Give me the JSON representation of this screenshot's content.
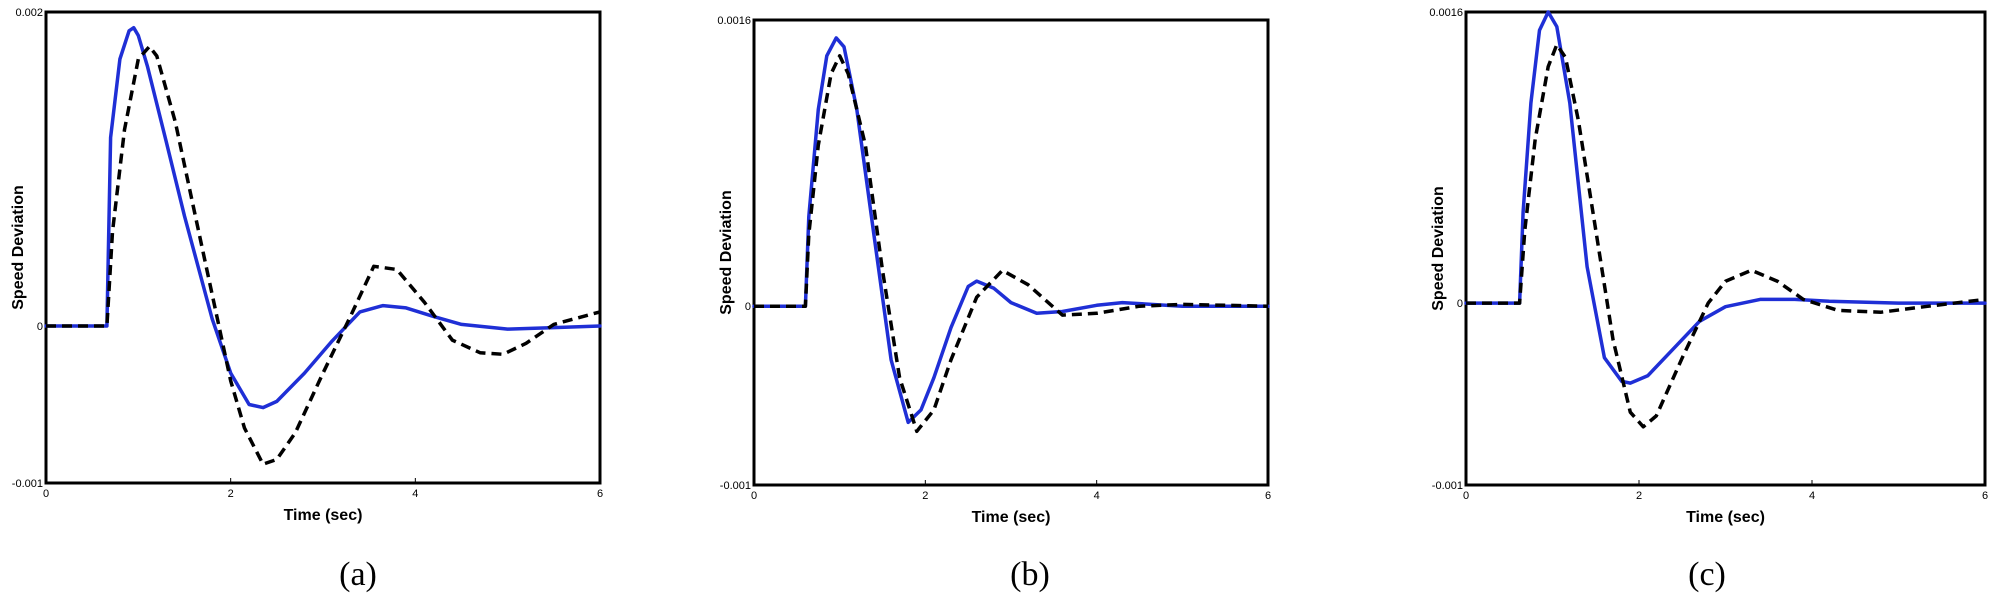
{
  "colors": {
    "series_blue": "#1f2fd6",
    "series_black": "#000000",
    "axes": "#000000"
  },
  "chart_data": [
    {
      "type": "line",
      "caption": "(a)",
      "xlabel": "Time (sec)",
      "ylabel": "Speed Deviation",
      "xlim": [
        0,
        6
      ],
      "ylim": [
        -0.001,
        0.002
      ],
      "xticks": [
        0,
        2,
        4,
        6
      ],
      "xtick_labels": [
        "0",
        "2",
        "4",
        "6"
      ],
      "yticks": [
        -0.001,
        0,
        0.002
      ],
      "ytick_labels": [
        "-0.001",
        "0",
        "0.002"
      ],
      "grid": false,
      "series": [
        {
          "style": "solid",
          "color": "#1f2fd6",
          "x": [
            0,
            0.66,
            0.7,
            0.8,
            0.9,
            0.95,
            1.0,
            1.1,
            1.3,
            1.5,
            1.8,
            2.0,
            2.2,
            2.35,
            2.5,
            2.8,
            3.1,
            3.4,
            3.65,
            3.9,
            4.2,
            4.5,
            5.0,
            5.5,
            6.0
          ],
          "y": [
            0,
            0,
            0.0012,
            0.0017,
            0.00188,
            0.0019,
            0.00185,
            0.00165,
            0.00118,
            0.0007,
            4.5e-05,
            -0.0003,
            -0.0005,
            -0.00052,
            -0.00048,
            -0.0003,
            -9.5e-05,
            9e-05,
            0.00013,
            0.000115,
            6e-05,
            1e-05,
            -2e-05,
            -1e-05,
            0.0
          ]
        },
        {
          "style": "dashed",
          "color": "#000000",
          "x": [
            0,
            0.66,
            0.72,
            0.85,
            1.0,
            1.12,
            1.2,
            1.4,
            1.6,
            1.8,
            2.0,
            2.15,
            2.35,
            2.5,
            2.7,
            3.0,
            3.3,
            3.55,
            3.8,
            4.1,
            4.4,
            4.7,
            4.95,
            5.2,
            5.5,
            6.0
          ],
          "y": [
            0,
            0,
            0.0006,
            0.00125,
            0.0017,
            0.00178,
            0.00172,
            0.0013,
            0.00075,
            0.0002,
            -0.00035,
            -0.00065,
            -0.00088,
            -0.00085,
            -0.00068,
            -0.0003,
            6.5e-05,
            0.00038,
            0.00036,
            0.00015,
            -9e-05,
            -0.00017,
            -0.00018,
            -0.00011,
            1e-05,
            9e-05
          ]
        }
      ]
    },
    {
      "type": "line",
      "caption": "(b)",
      "xlabel": "Time (sec)",
      "ylabel": "Speed Deviation",
      "xlim": [
        0,
        6
      ],
      "ylim": [
        -0.001,
        0.0016
      ],
      "xticks": [
        0,
        2,
        4,
        6
      ],
      "xtick_labels": [
        "0",
        "2",
        "4",
        "6"
      ],
      "yticks": [
        -0.001,
        0,
        0.0016
      ],
      "ytick_labels": [
        "-0.001",
        "0",
        "0.0016"
      ],
      "grid": false,
      "series": [
        {
          "style": "solid",
          "color": "#1f2fd6",
          "x": [
            0,
            0.6,
            0.64,
            0.75,
            0.85,
            0.96,
            1.05,
            1.2,
            1.4,
            1.6,
            1.8,
            1.95,
            2.1,
            2.3,
            2.5,
            2.6,
            2.8,
            3.0,
            3.3,
            3.6,
            4.0,
            4.3,
            5.0,
            6.0
          ],
          "y": [
            0,
            0,
            0.0005,
            0.0011,
            0.0014,
            0.0015,
            0.00145,
            0.0011,
            0.0004,
            -0.0003,
            -0.00065,
            -0.00058,
            -0.0004,
            -0.00012,
            0.00011,
            0.00014,
            0.0001,
            2e-05,
            -4e-05,
            -3e-05,
            5e-06,
            2e-05,
            0.0,
            0.0
          ]
        },
        {
          "style": "dashed",
          "color": "#000000",
          "x": [
            0,
            0.6,
            0.64,
            0.75,
            0.9,
            1.0,
            1.1,
            1.3,
            1.5,
            1.7,
            1.9,
            2.1,
            2.3,
            2.6,
            2.9,
            3.2,
            3.6,
            4.0,
            4.5,
            5.0,
            6.0
          ],
          "y": [
            0,
            0,
            0.0004,
            0.0009,
            0.0013,
            0.0014,
            0.0013,
            0.0009,
            0.0002,
            -0.0004,
            -0.0007,
            -0.00058,
            -0.0003,
            5e-05,
            0.0002,
            0.00012,
            -5e-05,
            -4e-05,
            0.0,
            1e-05,
            0.0
          ]
        }
      ]
    },
    {
      "type": "line",
      "caption": "(c)",
      "xlabel": "Time (sec)",
      "ylabel": "Speed Deviation",
      "xlim": [
        0,
        6
      ],
      "ylim": [
        -0.001,
        0.0016
      ],
      "xticks": [
        0,
        2,
        4,
        6
      ],
      "xtick_labels": [
        "0",
        "2",
        "4",
        "6"
      ],
      "yticks": [
        -0.001,
        0,
        0.0016
      ],
      "ytick_labels": [
        "-0.001",
        "0",
        "0.0016"
      ],
      "grid": false,
      "series": [
        {
          "style": "solid",
          "color": "#1f2fd6",
          "x": [
            0,
            0.62,
            0.66,
            0.75,
            0.85,
            0.95,
            1.05,
            1.2,
            1.4,
            1.6,
            1.8,
            1.9,
            2.1,
            2.4,
            2.7,
            3.0,
            3.4,
            3.8,
            4.2,
            5.0,
            6.0
          ],
          "y": [
            0,
            0,
            0.0005,
            0.0011,
            0.0015,
            0.0016,
            0.00152,
            0.0011,
            0.0002,
            -0.0003,
            -0.00043,
            -0.00044,
            -0.0004,
            -0.00025,
            -0.0001,
            -2e-05,
            2e-05,
            2e-05,
            1e-05,
            0.0,
            0.0
          ]
        },
        {
          "style": "dashed",
          "color": "#000000",
          "x": [
            0,
            0.62,
            0.68,
            0.8,
            0.95,
            1.05,
            1.15,
            1.3,
            1.5,
            1.7,
            1.9,
            2.05,
            2.2,
            2.5,
            2.8,
            3.0,
            3.3,
            3.6,
            3.9,
            4.3,
            4.8,
            5.3,
            6.0
          ],
          "y": [
            0,
            0,
            0.0004,
            0.0009,
            0.0013,
            0.00142,
            0.00135,
            0.001,
            0.0004,
            -0.0002,
            -0.0006,
            -0.00068,
            -0.00062,
            -0.0003,
            0.0,
            0.00012,
            0.00018,
            0.00012,
            2e-05,
            -4e-05,
            -5e-05,
            -2e-05,
            2e-05
          ]
        }
      ]
    }
  ]
}
